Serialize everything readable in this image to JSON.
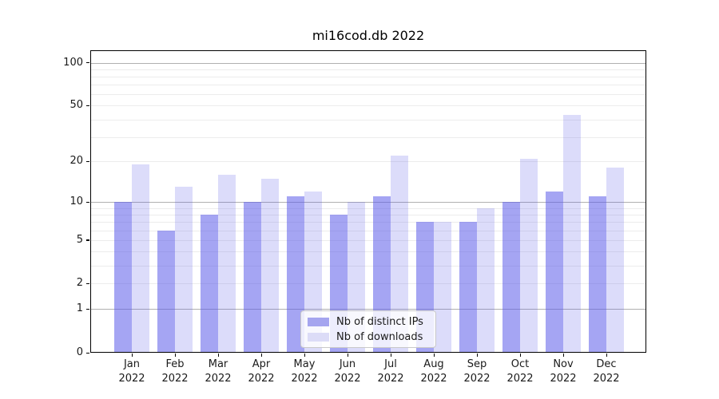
{
  "title": "mi16cod.db 2022",
  "chart_data": {
    "type": "bar",
    "title": "mi16cod.db 2022",
    "x": {
      "months": [
        "Jan",
        "Feb",
        "Mar",
        "Apr",
        "May",
        "Jun",
        "Jul",
        "Aug",
        "Sep",
        "Oct",
        "Nov",
        "Dec"
      ],
      "year": "2022"
    },
    "series": [
      {
        "name": "Nb of distinct IPs",
        "slug": "distinct-ips",
        "color": "#a5a5ef",
        "fill": "rgba(88,88,232,0.54)",
        "values": [
          10,
          6,
          8,
          10,
          11,
          8,
          11,
          7,
          7,
          10,
          12,
          11
        ]
      },
      {
        "name": "Nb of downloads",
        "slug": "downloads",
        "color": "#dcdcf7",
        "fill": "rgba(88,88,232,0.21)",
        "values": [
          19,
          13,
          16,
          15,
          12,
          10,
          22,
          7,
          9,
          21,
          43,
          18
        ]
      }
    ],
    "y_axis": {
      "scale": "log1p",
      "tick_labels": [
        "100",
        "50",
        "20",
        "10",
        "5",
        "2",
        "1",
        "0"
      ],
      "tick_values": [
        100,
        50,
        20,
        10,
        5,
        2,
        1,
        0
      ],
      "major_gridlines": [
        1,
        10,
        100
      ],
      "minor_gridlines": [
        2,
        3,
        4,
        5,
        6,
        7,
        8,
        9,
        20,
        30,
        40,
        50,
        60,
        70,
        80,
        90
      ],
      "ylim": [
        0,
        122
      ]
    },
    "legend": {
      "location": "lower center"
    },
    "grid": true
  },
  "colors": {
    "grid_minor": "#ececec",
    "grid_major": "#b0b0b0",
    "spine": "#000000",
    "background": "#ffffff"
  }
}
